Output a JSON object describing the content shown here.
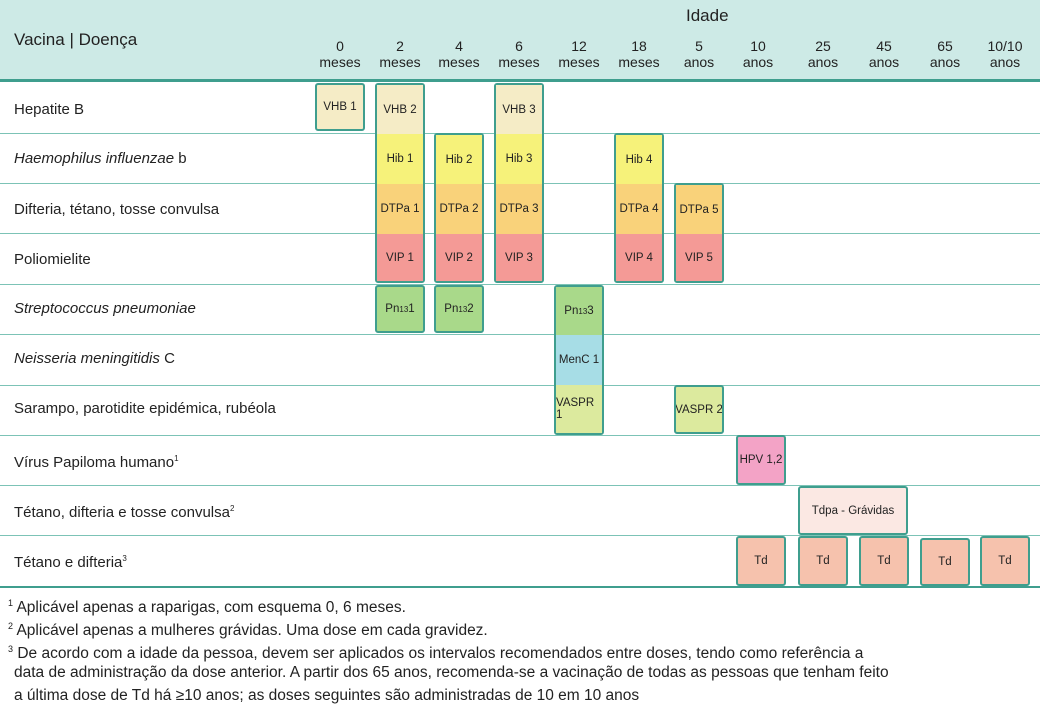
{
  "header": {
    "title": "Vacina | Doença",
    "idade": "Idade",
    "ages": [
      {
        "n": "0",
        "u": "meses"
      },
      {
        "n": "2",
        "u": "meses"
      },
      {
        "n": "4",
        "u": "meses"
      },
      {
        "n": "6",
        "u": "meses"
      },
      {
        "n": "12",
        "u": "meses"
      },
      {
        "n": "18",
        "u": "meses"
      },
      {
        "n": "5",
        "u": "anos"
      },
      {
        "n": "10",
        "u": "anos"
      },
      {
        "n": "25",
        "u": "anos"
      },
      {
        "n": "45",
        "u": "anos"
      },
      {
        "n": "65",
        "u": "anos"
      },
      {
        "n": "10/10",
        "u": "anos"
      }
    ]
  },
  "rows": [
    {
      "label": "Hepatite B",
      "italic": "",
      "rest": ""
    },
    {
      "label": "",
      "italic": "Haemophilus influenzae",
      "rest": " b"
    },
    {
      "label": "Difteria, tétano, tosse convulsa",
      "italic": "",
      "rest": ""
    },
    {
      "label": "Poliomielite",
      "italic": "",
      "rest": ""
    },
    {
      "label": "",
      "italic": "Streptococcus pneumoniae",
      "rest": ""
    },
    {
      "label": "",
      "italic": "Neisseria meningitidis",
      "rest": " C"
    },
    {
      "label": "Sarampo, parotidite epidémica, rubéola",
      "italic": "",
      "rest": ""
    },
    {
      "label": "Vírus Papiloma humano",
      "italic": "",
      "rest": "",
      "sup": "1"
    },
    {
      "label": "Tétano, difteria e tosse convulsa",
      "italic": "",
      "rest": "",
      "sup": "2"
    },
    {
      "label": "Tétano e difteria",
      "italic": "",
      "rest": "",
      "sup": "3"
    }
  ],
  "doses": {
    "vhb1": "VHB 1",
    "vhb2": "VHB 2",
    "vhb3": "VHB 3",
    "hib1": "Hib 1",
    "hib2": "Hib 2",
    "hib3": "Hib 3",
    "hib4": "Hib 4",
    "dtpa1": "DTPa 1",
    "dtpa2": "DTPa 2",
    "dtpa3": "DTPa 3",
    "dtpa4": "DTPa 4",
    "dtpa5": "DTPa 5",
    "vip1": "VIP 1",
    "vip2": "VIP 2",
    "vip3": "VIP 3",
    "vip4": "VIP 4",
    "vip5": "VIP 5",
    "pn_base": "Pn",
    "pn_sub": "13",
    "pn1": " 1",
    "pn2": " 2",
    "pn3": " 3",
    "menc1": "MenC 1",
    "vaspr1": "VASPR 1",
    "vaspr2": "VASPR 2",
    "hpv": "HPV 1,2",
    "tdpa": "Tdpa - Grávidas",
    "td": "Td"
  },
  "footnotes": [
    {
      "num": "1",
      "text": " Aplicável apenas a raparigas, com esquema 0, 6 meses."
    },
    {
      "num": "2",
      "text": " Aplicável apenas a mulheres grávidas. Uma dose em cada gravidez."
    },
    {
      "num": "3",
      "text": " De acordo com a idade da pessoa, devem ser aplicados os intervalos recomendados entre doses, tendo como referência a"
    },
    {
      "num": "",
      "text": "data de administração da dose anterior. A partir dos 65 anos, recomenda-se a vacinação de todas as pessoas que tenham feito"
    },
    {
      "num": "",
      "text": "a última dose de Td há ≥10 anos; as doses seguintes são administradas de 10 em 10 anos"
    }
  ],
  "colors": {
    "header_bg": "#cdeae6",
    "border": "#3f9e8e",
    "vhb": "#f5ecc6",
    "hib": "#f6f27a",
    "dtpa": "#f9d27a",
    "vip": "#f49a96",
    "pn": "#a9d98a",
    "menc": "#a7dde6",
    "vaspr": "#dcea9e",
    "hpv": "#f3a3c6",
    "tdpa": "#fbe8e3",
    "td": "#f6c2ad"
  }
}
